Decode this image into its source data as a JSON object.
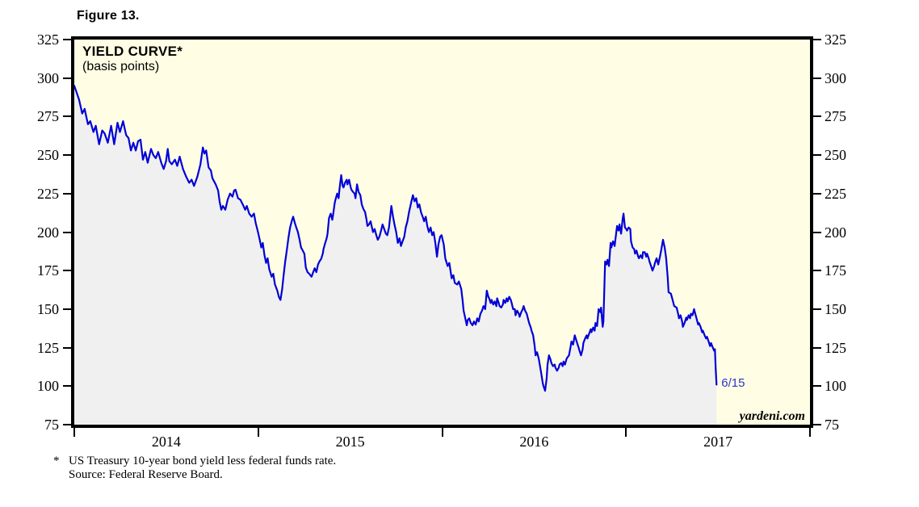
{
  "page": {
    "figure_label": "Figure 13."
  },
  "chart": {
    "title": "YIELD CURVE*",
    "subtitle": "(basis points)",
    "watermark": "yardeni.com",
    "annotation_label": "6/15",
    "footnote": {
      "marker": "*",
      "line1": "US Treasury 10-year bond yield less federal funds rate.",
      "line2": "Source: Federal Reserve Board."
    }
  },
  "colors": {
    "plot_background": "#fffee4",
    "area_fill": "#f0f0f0",
    "line": "#0000d8",
    "annotation_text": "#2a35cc",
    "axis_and_text": "#000000",
    "page_background": "#ffffff"
  },
  "chart_data": {
    "type": "area",
    "title": "YIELD CURVE*",
    "subtitle": "(basis points)",
    "series_name": "US Treasury 10-year bond yield less federal funds rate",
    "units": "basis points",
    "x_range": [
      2014,
      2018
    ],
    "y_range": [
      75,
      325
    ],
    "y_ticks": [
      325,
      300,
      275,
      250,
      225,
      200,
      175,
      150,
      125,
      100,
      75
    ],
    "x_tick_years": [
      2014,
      2015,
      2016,
      2017,
      2018
    ],
    "x_labels": [
      "2014",
      "2015",
      "2016",
      "2017"
    ],
    "grid": false,
    "legend": "none",
    "last_point_label": "6/15",
    "last_value": 101,
    "points": [
      [
        2014.0,
        295
      ],
      [
        2014.026,
        286
      ],
      [
        2014.043,
        277
      ],
      [
        2014.056,
        280
      ],
      [
        2014.074,
        270
      ],
      [
        2014.087,
        272
      ],
      [
        2014.104,
        265
      ],
      [
        2014.117,
        269
      ],
      [
        2014.135,
        257
      ],
      [
        2014.152,
        266
      ],
      [
        2014.165,
        264
      ],
      [
        2014.182,
        258
      ],
      [
        2014.2,
        269
      ],
      [
        2014.217,
        257
      ],
      [
        2014.235,
        271
      ],
      [
        2014.248,
        265
      ],
      [
        2014.265,
        272
      ],
      [
        2014.282,
        263
      ],
      [
        2014.295,
        261
      ],
      [
        2014.308,
        253
      ],
      [
        2014.321,
        258
      ],
      [
        2014.334,
        253
      ],
      [
        2014.347,
        259
      ],
      [
        2014.36,
        260
      ],
      [
        2014.373,
        247
      ],
      [
        2014.386,
        252
      ],
      [
        2014.399,
        245
      ],
      [
        2014.417,
        254
      ],
      [
        2014.43,
        250
      ],
      [
        2014.443,
        248
      ],
      [
        2014.456,
        252
      ],
      [
        2014.473,
        245
      ],
      [
        2014.486,
        241
      ],
      [
        2014.499,
        246
      ],
      [
        2014.508,
        254
      ],
      [
        2014.517,
        246
      ],
      [
        2014.53,
        244
      ],
      [
        2014.547,
        247
      ],
      [
        2014.56,
        243
      ],
      [
        2014.573,
        249
      ],
      [
        2014.591,
        241
      ],
      [
        2014.608,
        236
      ],
      [
        2014.625,
        232
      ],
      [
        2014.638,
        234
      ],
      [
        2014.651,
        230
      ],
      [
        2014.669,
        236
      ],
      [
        2014.686,
        244
      ],
      [
        2014.699,
        255
      ],
      [
        2014.708,
        251
      ],
      [
        2014.717,
        253
      ],
      [
        2014.73,
        242
      ],
      [
        2014.743,
        240
      ],
      [
        2014.751,
        235
      ],
      [
        2014.769,
        231
      ],
      [
        2014.782,
        227
      ],
      [
        2014.79,
        220
      ],
      [
        2014.799,
        214.5
      ],
      [
        2014.808,
        217
      ],
      [
        2014.821,
        214.5
      ],
      [
        2014.834,
        221
      ],
      [
        2014.847,
        225
      ],
      [
        2014.86,
        223
      ],
      [
        2014.869,
        227
      ],
      [
        2014.877,
        227.5
      ],
      [
        2014.89,
        222
      ],
      [
        2014.903,
        221
      ],
      [
        2014.916,
        218
      ],
      [
        2014.929,
        214.5
      ],
      [
        2014.938,
        217
      ],
      [
        2014.951,
        212
      ],
      [
        2014.964,
        210
      ],
      [
        2014.977,
        212
      ],
      [
        2014.986,
        206
      ],
      [
        2014.999,
        200
      ],
      [
        2015.008,
        195
      ],
      [
        2015.017,
        190
      ],
      [
        2015.025,
        193
      ],
      [
        2015.034,
        185
      ],
      [
        2015.043,
        180
      ],
      [
        2015.051,
        183
      ],
      [
        2015.06,
        176
      ],
      [
        2015.073,
        171
      ],
      [
        2015.082,
        173
      ],
      [
        2015.091,
        166
      ],
      [
        2015.104,
        162
      ],
      [
        2015.112,
        158
      ],
      [
        2015.121,
        156
      ],
      [
        2015.13,
        163
      ],
      [
        2015.138,
        172
      ],
      [
        2015.147,
        181
      ],
      [
        2015.155,
        188
      ],
      [
        2015.164,
        196
      ],
      [
        2015.173,
        203
      ],
      [
        2015.182,
        207
      ],
      [
        2015.19,
        210
      ],
      [
        2015.199,
        206
      ],
      [
        2015.207,
        203
      ],
      [
        2015.216,
        200
      ],
      [
        2015.225,
        195
      ],
      [
        2015.233,
        190
      ],
      [
        2015.242,
        188
      ],
      [
        2015.251,
        186
      ],
      [
        2015.259,
        177
      ],
      [
        2015.268,
        174
      ],
      [
        2015.277,
        173
      ],
      [
        2015.29,
        171
      ],
      [
        2015.299,
        174
      ],
      [
        2015.307,
        176.5
      ],
      [
        2015.316,
        174
      ],
      [
        2015.325,
        179
      ],
      [
        2015.333,
        181
      ],
      [
        2015.342,
        182.5
      ],
      [
        2015.351,
        186
      ],
      [
        2015.355,
        189
      ],
      [
        2015.364,
        193
      ],
      [
        2015.372,
        196
      ],
      [
        2015.377,
        199
      ],
      [
        2015.385,
        209
      ],
      [
        2015.394,
        212
      ],
      [
        2015.403,
        208
      ],
      [
        2015.407,
        211
      ],
      [
        2015.416,
        219
      ],
      [
        2015.42,
        221
      ],
      [
        2015.429,
        225
      ],
      [
        2015.437,
        222
      ],
      [
        2015.442,
        228
      ],
      [
        2015.451,
        237
      ],
      [
        2015.459,
        230
      ],
      [
        2015.464,
        229
      ],
      [
        2015.472,
        232
      ],
      [
        2015.481,
        234
      ],
      [
        2015.485,
        231
      ],
      [
        2015.494,
        234
      ],
      [
        2015.503,
        229
      ],
      [
        2015.507,
        227.5
      ],
      [
        2015.516,
        226
      ],
      [
        2015.524,
        225
      ],
      [
        2015.529,
        222
      ],
      [
        2015.537,
        231
      ],
      [
        2015.546,
        226
      ],
      [
        2015.555,
        224
      ],
      [
        2015.563,
        218
      ],
      [
        2015.572,
        215
      ],
      [
        2015.581,
        213
      ],
      [
        2015.589,
        208
      ],
      [
        2015.594,
        204
      ],
      [
        2015.602,
        205
      ],
      [
        2015.611,
        207
      ],
      [
        2015.624,
        200
      ],
      [
        2015.633,
        202
      ],
      [
        2015.642,
        198
      ],
      [
        2015.65,
        195
      ],
      [
        2015.659,
        197
      ],
      [
        2015.668,
        201
      ],
      [
        2015.676,
        205
      ],
      [
        2015.685,
        202
      ],
      [
        2015.694,
        199
      ],
      [
        2015.702,
        198
      ],
      [
        2015.711,
        203
      ],
      [
        2015.724,
        217
      ],
      [
        2015.733,
        210
      ],
      [
        2015.741,
        205
      ],
      [
        2015.75,
        200
      ],
      [
        2015.759,
        193
      ],
      [
        2015.768,
        196
      ],
      [
        2015.776,
        191
      ],
      [
        2015.785,
        194
      ],
      [
        2015.794,
        197
      ],
      [
        2015.802,
        203
      ],
      [
        2015.811,
        207
      ],
      [
        2015.82,
        213
      ],
      [
        2015.833,
        220
      ],
      [
        2015.841,
        224
      ],
      [
        2015.85,
        220
      ],
      [
        2015.859,
        222
      ],
      [
        2015.868,
        216
      ],
      [
        2015.876,
        218
      ],
      [
        2015.885,
        213
      ],
      [
        2015.894,
        210
      ],
      [
        2015.902,
        207
      ],
      [
        2015.911,
        210
      ],
      [
        2015.919,
        204
      ],
      [
        2015.928,
        200
      ],
      [
        2015.937,
        203
      ],
      [
        2015.946,
        198
      ],
      [
        2015.954,
        200
      ],
      [
        2015.963,
        193
      ],
      [
        2015.972,
        184
      ],
      [
        2015.98,
        192
      ],
      [
        2015.989,
        197
      ],
      [
        2015.997,
        198
      ],
      [
        2016.009,
        192
      ],
      [
        2016.017,
        183
      ],
      [
        2016.03,
        178
      ],
      [
        2016.039,
        180
      ],
      [
        2016.052,
        170
      ],
      [
        2016.061,
        172
      ],
      [
        2016.069,
        167
      ],
      [
        2016.082,
        166
      ],
      [
        2016.091,
        168
      ],
      [
        2016.104,
        163
      ],
      [
        2016.112,
        155
      ],
      [
        2016.117,
        149
      ],
      [
        2016.126,
        144
      ],
      [
        2016.134,
        139.5
      ],
      [
        2016.139,
        143
      ],
      [
        2016.147,
        144
      ],
      [
        2016.156,
        141
      ],
      [
        2016.165,
        139.5
      ],
      [
        2016.173,
        142
      ],
      [
        2016.182,
        140
      ],
      [
        2016.191,
        144
      ],
      [
        2016.199,
        142
      ],
      [
        2016.208,
        147
      ],
      [
        2016.217,
        149
      ],
      [
        2016.225,
        152
      ],
      [
        2016.234,
        150
      ],
      [
        2016.243,
        162
      ],
      [
        2016.251,
        158
      ],
      [
        2016.256,
        157
      ],
      [
        2016.264,
        154
      ],
      [
        2016.269,
        156
      ],
      [
        2016.278,
        153
      ],
      [
        2016.286,
        155
      ],
      [
        2016.295,
        152
      ],
      [
        2016.299,
        157
      ],
      [
        2016.308,
        154
      ],
      [
        2016.312,
        152
      ],
      [
        2016.321,
        151
      ],
      [
        2016.33,
        153
      ],
      [
        2016.334,
        156
      ],
      [
        2016.343,
        154
      ],
      [
        2016.351,
        157
      ],
      [
        2016.356,
        155
      ],
      [
        2016.365,
        158
      ],
      [
        2016.373,
        156
      ],
      [
        2016.378,
        154
      ],
      [
        2016.386,
        150
      ],
      [
        2016.395,
        150
      ],
      [
        2016.399,
        146
      ],
      [
        2016.408,
        149
      ],
      [
        2016.417,
        147
      ],
      [
        2016.421,
        145
      ],
      [
        2016.43,
        148
      ],
      [
        2016.438,
        150
      ],
      [
        2016.443,
        152
      ],
      [
        2016.451,
        149
      ],
      [
        2016.46,
        147
      ],
      [
        2016.464,
        145
      ],
      [
        2016.473,
        141
      ],
      [
        2016.482,
        138
      ],
      [
        2016.486,
        136
      ],
      [
        2016.495,
        133
      ],
      [
        2016.503,
        126
      ],
      [
        2016.508,
        120
      ],
      [
        2016.516,
        122
      ],
      [
        2016.525,
        118
      ],
      [
        2016.538,
        109
      ],
      [
        2016.547,
        102
      ],
      [
        2016.551,
        100
      ],
      [
        2016.56,
        97
      ],
      [
        2016.568,
        105
      ],
      [
        2016.573,
        114
      ],
      [
        2016.581,
        120
      ],
      [
        2016.59,
        117
      ],
      [
        2016.594,
        115
      ],
      [
        2016.603,
        113
      ],
      [
        2016.612,
        114
      ],
      [
        2016.616,
        112
      ],
      [
        2016.625,
        110
      ],
      [
        2016.634,
        112
      ],
      [
        2016.638,
        114
      ],
      [
        2016.647,
        115
      ],
      [
        2016.655,
        113
      ],
      [
        2016.66,
        116
      ],
      [
        2016.668,
        114
      ],
      [
        2016.677,
        118
      ],
      [
        2016.69,
        120
      ],
      [
        2016.699,
        126
      ],
      [
        2016.703,
        129
      ],
      [
        2016.712,
        127
      ],
      [
        2016.721,
        133
      ],
      [
        2016.729,
        130
      ],
      [
        2016.734,
        128
      ],
      [
        2016.742,
        125
      ],
      [
        2016.747,
        123
      ],
      [
        2016.755,
        120
      ],
      [
        2016.764,
        124
      ],
      [
        2016.768,
        128
      ],
      [
        2016.777,
        131
      ],
      [
        2016.786,
        133
      ],
      [
        2016.79,
        131
      ],
      [
        2016.799,
        134
      ],
      [
        2016.808,
        137
      ],
      [
        2016.812,
        135
      ],
      [
        2016.821,
        138
      ],
      [
        2016.829,
        136
      ],
      [
        2016.834,
        141
      ],
      [
        2016.842,
        139
      ],
      [
        2016.851,
        150
      ],
      [
        2016.86,
        148
      ],
      [
        2016.864,
        151
      ],
      [
        2016.873,
        138.5
      ],
      [
        2016.877,
        142
      ],
      [
        2016.886,
        181
      ],
      [
        2016.894,
        179
      ],
      [
        2016.899,
        182
      ],
      [
        2016.907,
        178
      ],
      [
        2016.916,
        193
      ],
      [
        2016.92,
        190
      ],
      [
        2016.929,
        194
      ],
      [
        2016.938,
        191
      ],
      [
        2016.942,
        195
      ],
      [
        2016.951,
        204
      ],
      [
        2016.959,
        201
      ],
      [
        2016.964,
        205
      ],
      [
        2016.973,
        199
      ],
      [
        2016.981,
        208
      ],
      [
        2016.986,
        212
      ],
      [
        2016.994,
        203
      ],
      [
        2017.001,
        202
      ],
      [
        2017.005,
        201
      ],
      [
        2017.014,
        203
      ],
      [
        2017.023,
        202
      ],
      [
        2017.027,
        194
      ],
      [
        2017.036,
        190
      ],
      [
        2017.044,
        189
      ],
      [
        2017.049,
        186
      ],
      [
        2017.057,
        188
      ],
      [
        2017.066,
        184
      ],
      [
        2017.07,
        183
      ],
      [
        2017.079,
        185
      ],
      [
        2017.088,
        183
      ],
      [
        2017.092,
        187
      ],
      [
        2017.101,
        187
      ],
      [
        2017.11,
        184
      ],
      [
        2017.114,
        186
      ],
      [
        2017.123,
        183
      ],
      [
        2017.127,
        181
      ],
      [
        2017.136,
        178
      ],
      [
        2017.144,
        175
      ],
      [
        2017.153,
        178
      ],
      [
        2017.157,
        180
      ],
      [
        2017.166,
        183
      ],
      [
        2017.175,
        179
      ],
      [
        2017.184,
        184
      ],
      [
        2017.192,
        189
      ],
      [
        2017.201,
        195
      ],
      [
        2017.21,
        190
      ],
      [
        2017.218,
        183
      ],
      [
        2017.227,
        170
      ],
      [
        2017.231,
        161
      ],
      [
        2017.244,
        160
      ],
      [
        2017.253,
        156
      ],
      [
        2017.262,
        152
      ],
      [
        2017.275,
        151
      ],
      [
        2017.283,
        147
      ],
      [
        2017.288,
        144
      ],
      [
        2017.296,
        146
      ],
      [
        2017.305,
        142
      ],
      [
        2017.309,
        138.5
      ],
      [
        2017.318,
        141
      ],
      [
        2017.327,
        144.5
      ],
      [
        2017.331,
        143
      ],
      [
        2017.34,
        146
      ],
      [
        2017.348,
        144
      ],
      [
        2017.353,
        147
      ],
      [
        2017.361,
        146
      ],
      [
        2017.37,
        150
      ],
      [
        2017.374,
        148
      ],
      [
        2017.383,
        144
      ],
      [
        2017.392,
        140
      ],
      [
        2017.396,
        141
      ],
      [
        2017.405,
        138.5
      ],
      [
        2017.414,
        135
      ],
      [
        2017.418,
        136
      ],
      [
        2017.427,
        133
      ],
      [
        2017.435,
        131
      ],
      [
        2017.44,
        132
      ],
      [
        2017.449,
        129
      ],
      [
        2017.457,
        126
      ],
      [
        2017.462,
        128
      ],
      [
        2017.47,
        125.5
      ],
      [
        2017.479,
        123
      ],
      [
        2017.483,
        124
      ],
      [
        2017.487,
        112
      ],
      [
        2017.492,
        101
      ]
    ]
  }
}
